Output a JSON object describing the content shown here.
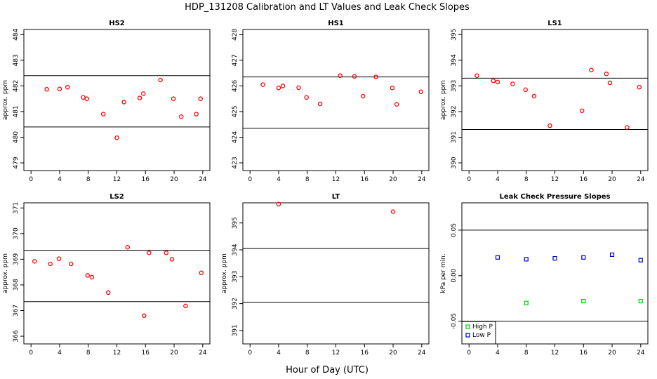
{
  "title": "HDP_131208  Calibration and LT Values and Leak Check Slopes",
  "x_axis_label": "Hour of Day (UTC)",
  "chart_data": [
    {
      "type": "scatter",
      "title": "HS2",
      "ylabel": "approx. ppm",
      "xlim": [
        -1,
        25
      ],
      "ylim": [
        478.7,
        484.2
      ],
      "x_ticks": [
        0,
        4,
        8,
        12,
        16,
        20,
        24
      ],
      "y_ticks": [
        479,
        480,
        481,
        482,
        483,
        484
      ],
      "reference_lines": [
        480.4,
        482.4
      ],
      "series": [
        {
          "marker": "circle",
          "color": "#ff0000",
          "points": [
            [
              2.2,
              481.87
            ],
            [
              4,
              481.88
            ],
            [
              5.1,
              481.95
            ],
            [
              7.3,
              481.55
            ],
            [
              7.8,
              481.5
            ],
            [
              10.1,
              480.9
            ],
            [
              12,
              479.98
            ],
            [
              13,
              481.37
            ],
            [
              15.2,
              481.53
            ],
            [
              15.7,
              481.7
            ],
            [
              18.1,
              482.23
            ],
            [
              19.9,
              481.5
            ],
            [
              21,
              480.8
            ],
            [
              23.1,
              480.9
            ],
            [
              23.7,
              481.5
            ]
          ]
        }
      ]
    },
    {
      "type": "scatter",
      "title": "HS1",
      "ylabel": "",
      "xlim": [
        -1,
        25
      ],
      "ylim": [
        422.7,
        428.2
      ],
      "x_ticks": [
        0,
        4,
        8,
        12,
        16,
        20,
        24
      ],
      "y_ticks": [
        423,
        424,
        425,
        426,
        427,
        428
      ],
      "reference_lines": [
        424.35,
        426.35
      ],
      "series": [
        {
          "marker": "circle",
          "color": "#ff0000",
          "points": [
            [
              1.8,
              426.05
            ],
            [
              4,
              425.92
            ],
            [
              4.6,
              426.0
            ],
            [
              6.8,
              425.93
            ],
            [
              7.9,
              425.55
            ],
            [
              9.8,
              425.3
            ],
            [
              12.6,
              426.4
            ],
            [
              14.6,
              426.37
            ],
            [
              15.8,
              425.6
            ],
            [
              17.6,
              426.35
            ],
            [
              19.9,
              425.92
            ],
            [
              20.5,
              425.28
            ],
            [
              23.9,
              425.77
            ]
          ]
        }
      ]
    },
    {
      "type": "scatter",
      "title": "LS1",
      "ylabel": "approx. ppm",
      "xlim": [
        -1,
        25
      ],
      "ylim": [
        389.7,
        395.2
      ],
      "x_ticks": [
        0,
        4,
        8,
        12,
        16,
        20,
        24
      ],
      "y_ticks": [
        390,
        391,
        392,
        393,
        394,
        395
      ],
      "reference_lines": [
        391.3,
        393.3
      ],
      "series": [
        {
          "marker": "circle",
          "color": "#ff0000",
          "points": [
            [
              1.1,
              393.4
            ],
            [
              3.4,
              393.2
            ],
            [
              4,
              393.15
            ],
            [
              6.1,
              393.08
            ],
            [
              7.9,
              392.85
            ],
            [
              9.1,
              392.6
            ],
            [
              11.3,
              391.45
            ],
            [
              15.8,
              392.03
            ],
            [
              17.1,
              393.62
            ],
            [
              19.2,
              393.47
            ],
            [
              19.7,
              393.12
            ],
            [
              22.1,
              391.38
            ],
            [
              23.8,
              392.95
            ]
          ]
        }
      ]
    },
    {
      "type": "scatter",
      "title": "LS2",
      "ylabel": "approx. ppm",
      "xlim": [
        -1,
        25
      ],
      "ylim": [
        365.7,
        371.2
      ],
      "x_ticks": [
        0,
        4,
        8,
        12,
        16,
        20,
        24
      ],
      "y_ticks": [
        366,
        367,
        368,
        369,
        370,
        371
      ],
      "reference_lines": [
        367.35,
        369.35
      ],
      "series": [
        {
          "marker": "circle",
          "color": "#ff0000",
          "points": [
            [
              0.5,
              368.92
            ],
            [
              2.7,
              368.82
            ],
            [
              3.9,
              369.02
            ],
            [
              5.6,
              368.82
            ],
            [
              7.9,
              368.37
            ],
            [
              8.5,
              368.3
            ],
            [
              10.8,
              367.7
            ],
            [
              13.5,
              369.47
            ],
            [
              15.8,
              366.8
            ],
            [
              16.5,
              369.25
            ],
            [
              18.9,
              369.25
            ],
            [
              19.7,
              369.0
            ],
            [
              21.6,
              367.18
            ],
            [
              23.8,
              368.47
            ]
          ]
        }
      ]
    },
    {
      "type": "scatter",
      "title": "LT",
      "ylabel": "approx. ppm",
      "xlim": [
        -1,
        25
      ],
      "ylim": [
        390.5,
        395.75
      ],
      "x_ticks": [
        0,
        4,
        8,
        12,
        16,
        20,
        24
      ],
      "y_ticks": [
        391,
        392,
        393,
        394,
        395
      ],
      "reference_lines": [
        392.05,
        394.05
      ],
      "series": [
        {
          "marker": "circle",
          "color": "#ff0000",
          "points": [
            [
              4,
              395.7
            ],
            [
              20,
              395.42
            ]
          ]
        }
      ]
    },
    {
      "type": "scatter",
      "title": "Leak Check Pressure Slopes",
      "ylabel": "kPa per min.",
      "xlim": [
        -1,
        25
      ],
      "ylim": [
        -0.075,
        0.08
      ],
      "x_ticks": [
        0,
        4,
        8,
        12,
        16,
        20,
        24
      ],
      "y_ticks": [
        -0.05,
        0.0,
        0.05
      ],
      "y_tick_labels": [
        "-0.05",
        "0.00",
        "0.05"
      ],
      "reference_lines": [
        -0.05,
        0.05
      ],
      "legend_position": "bottom-left",
      "series": [
        {
          "name": "High P",
          "marker": "square",
          "color": "#00cc00",
          "points": [
            [
              8,
              -0.03
            ],
            [
              16,
              -0.028
            ],
            [
              24,
              -0.028
            ]
          ]
        },
        {
          "name": "Low P",
          "marker": "square",
          "color": "#0000cc",
          "points": [
            [
              4,
              0.02
            ],
            [
              8,
              0.018
            ],
            [
              12,
              0.019
            ],
            [
              16,
              0.02
            ],
            [
              20,
              0.023
            ],
            [
              24,
              0.017
            ]
          ]
        }
      ]
    }
  ]
}
